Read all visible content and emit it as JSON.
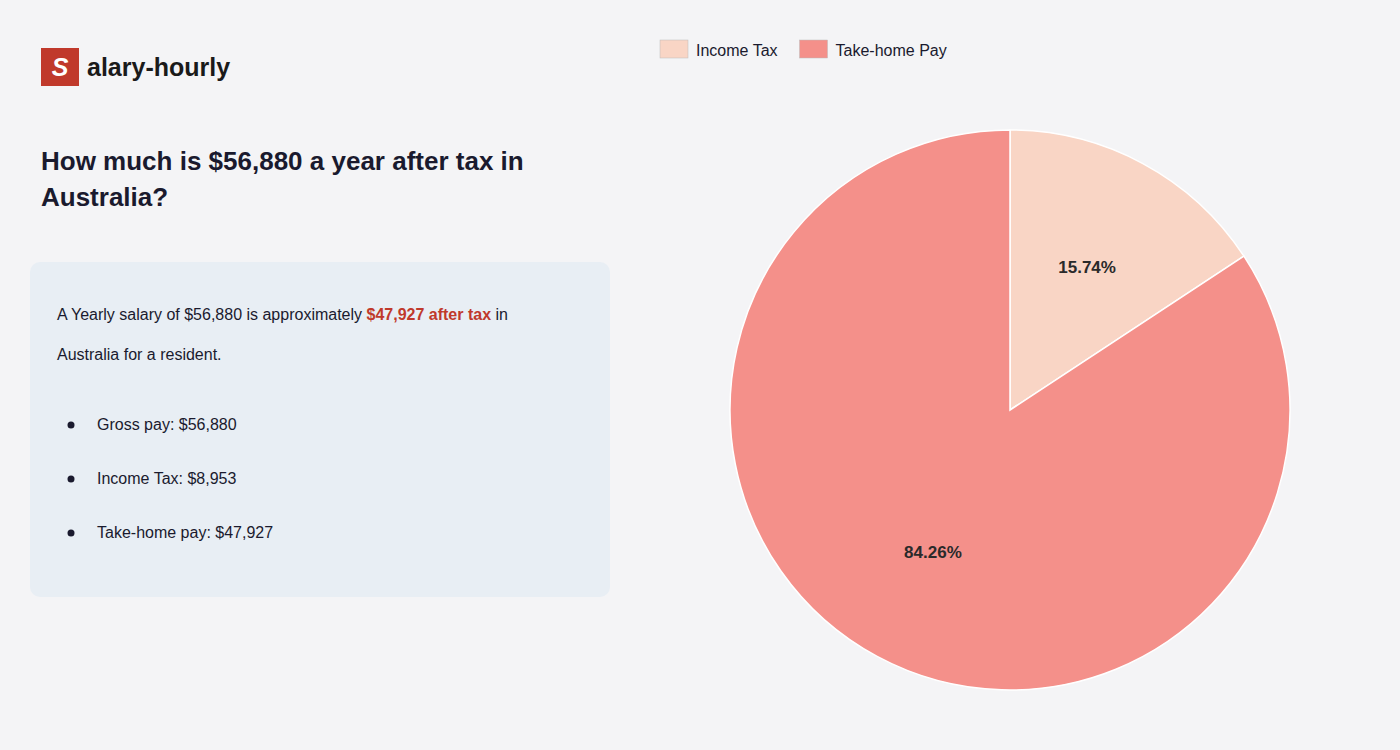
{
  "chart_data": {
    "type": "pie",
    "title": [
      "How much is $56,880 a year after tax in",
      "Australia?"
    ],
    "annotations": [
      "S",
      "alary-hourly",
      "A Yearly salary of $56,880 is approximately ",
      "$47,927 after tax",
      " in",
      "Australia for a resident.",
      "Gross pay: $56,880",
      "Income Tax: $8,953",
      "Take-home pay: $47,927"
    ],
    "categories": [
      "Income Tax",
      "Take-home Pay"
    ],
    "values": [
      15.74,
      84.26
    ],
    "value_labels": [
      "15.74%",
      "84.26%"
    ],
    "colors": [
      "#f9d5c5",
      "#f4908a"
    ],
    "data_labels": true,
    "legend": "top-left"
  }
}
